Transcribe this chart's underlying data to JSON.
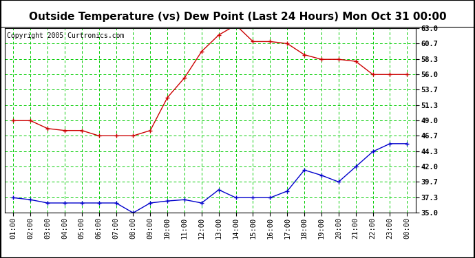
{
  "title": "Outside Temperature (vs) Dew Point (Last 24 Hours) Mon Oct 31 00:00",
  "copyright": "Copyright 2005 Curtronics.com",
  "x_labels": [
    "01:00",
    "02:00",
    "03:00",
    "04:00",
    "05:00",
    "06:00",
    "07:00",
    "08:00",
    "09:00",
    "10:00",
    "11:00",
    "12:00",
    "13:00",
    "14:00",
    "15:00",
    "16:00",
    "17:00",
    "18:00",
    "19:00",
    "20:00",
    "21:00",
    "22:00",
    "23:00",
    "00:00"
  ],
  "y_ticks": [
    35.0,
    37.3,
    39.7,
    42.0,
    44.3,
    46.7,
    49.0,
    51.3,
    53.7,
    56.0,
    58.3,
    60.7,
    63.0
  ],
  "ylim": [
    35.0,
    63.0
  ],
  "temp_data": [
    49.0,
    49.0,
    47.8,
    47.5,
    47.5,
    46.7,
    46.7,
    46.7,
    47.5,
    52.5,
    55.5,
    59.5,
    62.0,
    63.5,
    61.0,
    61.0,
    60.7,
    59.0,
    58.3,
    58.3,
    58.0,
    56.0,
    56.0,
    56.0
  ],
  "dew_data": [
    37.3,
    37.0,
    36.5,
    36.5,
    36.5,
    36.5,
    36.5,
    35.0,
    36.5,
    36.8,
    37.0,
    36.5,
    38.5,
    37.3,
    37.3,
    37.3,
    38.3,
    41.5,
    40.7,
    39.7,
    42.0,
    44.3,
    45.5,
    45.5
  ],
  "temp_color": "#cc0000",
  "dew_color": "#0000cc",
  "grid_color": "#00cc00",
  "bg_color": "#ffffff",
  "title_fontsize": 11,
  "tick_fontsize": 7.5,
  "copyright_fontsize": 7
}
